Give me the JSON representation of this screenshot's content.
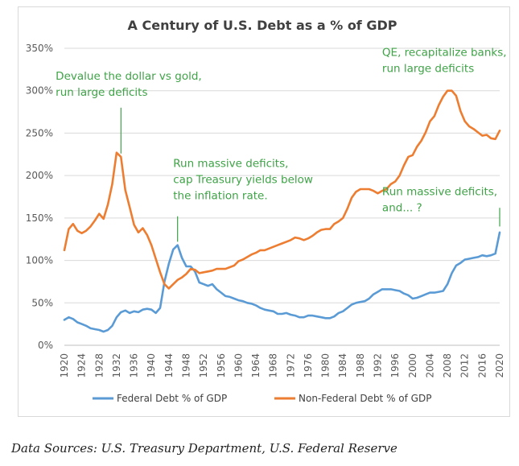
{
  "chart_data": {
    "type": "line",
    "title": "A Century of U.S. Debt as a % of GDP",
    "xlabel": "",
    "ylabel": "",
    "xlim": [
      1920,
      2020
    ],
    "ylim": [
      0,
      350
    ],
    "y_ticks": [
      0,
      50,
      100,
      150,
      200,
      250,
      300,
      350
    ],
    "y_tick_labels": [
      "0%",
      "50%",
      "100%",
      "150%",
      "200%",
      "250%",
      "300%",
      "350%"
    ],
    "x_ticks": [
      1920,
      1924,
      1928,
      1932,
      1936,
      1940,
      1944,
      1948,
      1952,
      1956,
      1960,
      1964,
      1968,
      1972,
      1976,
      1980,
      1984,
      1988,
      1992,
      1996,
      2000,
      2004,
      2008,
      2012,
      2016,
      2020
    ],
    "x_tick_labels": [
      "1920",
      "1924",
      "1928",
      "1932",
      "1936",
      "1940",
      "1944",
      "1948",
      "1952",
      "1956",
      "1960",
      "1964",
      "1968",
      "1972",
      "1976",
      "1980",
      "1984",
      "1988",
      "1992",
      "1996",
      "2000",
      "2004",
      "2008",
      "2012",
      "2016",
      "2020"
    ],
    "grid": "horizontal",
    "legend_position": "bottom",
    "series": [
      {
        "name": "Federal Debt % of GDP",
        "color": "#5b9bd5",
        "points": [
          [
            1920,
            30
          ],
          [
            1921,
            33
          ],
          [
            1922,
            31
          ],
          [
            1923,
            27
          ],
          [
            1924,
            25
          ],
          [
            1925,
            23
          ],
          [
            1926,
            20
          ],
          [
            1927,
            19
          ],
          [
            1928,
            18
          ],
          [
            1929,
            16
          ],
          [
            1930,
            18
          ],
          [
            1931,
            23
          ],
          [
            1932,
            33
          ],
          [
            1933,
            39
          ],
          [
            1934,
            41
          ],
          [
            1935,
            38
          ],
          [
            1936,
            40
          ],
          [
            1937,
            39
          ],
          [
            1938,
            42
          ],
          [
            1939,
            43
          ],
          [
            1940,
            42
          ],
          [
            1941,
            38
          ],
          [
            1942,
            44
          ],
          [
            1943,
            75
          ],
          [
            1944,
            96
          ],
          [
            1945,
            113
          ],
          [
            1946,
            118
          ],
          [
            1947,
            103
          ],
          [
            1948,
            93
          ],
          [
            1949,
            93
          ],
          [
            1950,
            87
          ],
          [
            1951,
            74
          ],
          [
            1952,
            72
          ],
          [
            1953,
            70
          ],
          [
            1954,
            72
          ],
          [
            1955,
            66
          ],
          [
            1956,
            62
          ],
          [
            1957,
            58
          ],
          [
            1958,
            57
          ],
          [
            1959,
            55
          ],
          [
            1960,
            53
          ],
          [
            1961,
            52
          ],
          [
            1962,
            50
          ],
          [
            1963,
            49
          ],
          [
            1964,
            47
          ],
          [
            1965,
            44
          ],
          [
            1966,
            42
          ],
          [
            1967,
            41
          ],
          [
            1968,
            40
          ],
          [
            1969,
            37
          ],
          [
            1970,
            37
          ],
          [
            1971,
            38
          ],
          [
            1972,
            36
          ],
          [
            1973,
            35
          ],
          [
            1974,
            33
          ],
          [
            1975,
            33
          ],
          [
            1976,
            35
          ],
          [
            1977,
            35
          ],
          [
            1978,
            34
          ],
          [
            1979,
            33
          ],
          [
            1980,
            32
          ],
          [
            1981,
            32
          ],
          [
            1982,
            34
          ],
          [
            1983,
            38
          ],
          [
            1984,
            40
          ],
          [
            1985,
            44
          ],
          [
            1986,
            48
          ],
          [
            1987,
            50
          ],
          [
            1988,
            51
          ],
          [
            1989,
            52
          ],
          [
            1990,
            55
          ],
          [
            1991,
            60
          ],
          [
            1992,
            63
          ],
          [
            1993,
            66
          ],
          [
            1994,
            66
          ],
          [
            1995,
            66
          ],
          [
            1996,
            65
          ],
          [
            1997,
            64
          ],
          [
            1998,
            61
          ],
          [
            1999,
            59
          ],
          [
            2000,
            55
          ],
          [
            2001,
            56
          ],
          [
            2002,
            58
          ],
          [
            2003,
            60
          ],
          [
            2004,
            62
          ],
          [
            2005,
            62
          ],
          [
            2006,
            63
          ],
          [
            2007,
            64
          ],
          [
            2008,
            72
          ],
          [
            2009,
            85
          ],
          [
            2010,
            94
          ],
          [
            2011,
            97
          ],
          [
            2012,
            101
          ],
          [
            2013,
            102
          ],
          [
            2014,
            103
          ],
          [
            2015,
            104
          ],
          [
            2016,
            106
          ],
          [
            2017,
            105
          ],
          [
            2018,
            106
          ],
          [
            2019,
            108
          ],
          [
            2020,
            133
          ]
        ]
      },
      {
        "name": "Non-Federal Debt % of GDP",
        "color": "#ed7d31",
        "points": [
          [
            1920,
            112
          ],
          [
            1921,
            137
          ],
          [
            1922,
            143
          ],
          [
            1923,
            135
          ],
          [
            1924,
            132
          ],
          [
            1925,
            135
          ],
          [
            1926,
            140
          ],
          [
            1927,
            147
          ],
          [
            1928,
            155
          ],
          [
            1929,
            149
          ],
          [
            1930,
            166
          ],
          [
            1931,
            190
          ],
          [
            1932,
            227
          ],
          [
            1933,
            222
          ],
          [
            1934,
            183
          ],
          [
            1935,
            163
          ],
          [
            1936,
            142
          ],
          [
            1937,
            133
          ],
          [
            1938,
            138
          ],
          [
            1939,
            130
          ],
          [
            1940,
            118
          ],
          [
            1941,
            102
          ],
          [
            1942,
            86
          ],
          [
            1943,
            72
          ],
          [
            1944,
            67
          ],
          [
            1945,
            72
          ],
          [
            1946,
            77
          ],
          [
            1947,
            80
          ],
          [
            1948,
            84
          ],
          [
            1949,
            90
          ],
          [
            1950,
            89
          ],
          [
            1951,
            85
          ],
          [
            1952,
            86
          ],
          [
            1953,
            87
          ],
          [
            1954,
            88
          ],
          [
            1955,
            90
          ],
          [
            1956,
            90
          ],
          [
            1957,
            90
          ],
          [
            1958,
            92
          ],
          [
            1959,
            94
          ],
          [
            1960,
            99
          ],
          [
            1961,
            101
          ],
          [
            1962,
            104
          ],
          [
            1963,
            107
          ],
          [
            1964,
            109
          ],
          [
            1965,
            112
          ],
          [
            1966,
            112
          ],
          [
            1967,
            114
          ],
          [
            1968,
            116
          ],
          [
            1969,
            118
          ],
          [
            1970,
            120
          ],
          [
            1971,
            122
          ],
          [
            1972,
            124
          ],
          [
            1973,
            127
          ],
          [
            1974,
            126
          ],
          [
            1975,
            124
          ],
          [
            1976,
            126
          ],
          [
            1977,
            129
          ],
          [
            1978,
            133
          ],
          [
            1979,
            136
          ],
          [
            1980,
            137
          ],
          [
            1981,
            137
          ],
          [
            1982,
            143
          ],
          [
            1983,
            146
          ],
          [
            1984,
            150
          ],
          [
            1985,
            161
          ],
          [
            1986,
            174
          ],
          [
            1987,
            181
          ],
          [
            1988,
            184
          ],
          [
            1989,
            184
          ],
          [
            1990,
            184
          ],
          [
            1991,
            182
          ],
          [
            1992,
            179
          ],
          [
            1993,
            182
          ],
          [
            1994,
            184
          ],
          [
            1995,
            190
          ],
          [
            1996,
            193
          ],
          [
            1997,
            200
          ],
          [
            1998,
            212
          ],
          [
            1999,
            222
          ],
          [
            2000,
            224
          ],
          [
            2001,
            234
          ],
          [
            2002,
            241
          ],
          [
            2003,
            251
          ],
          [
            2004,
            264
          ],
          [
            2005,
            270
          ],
          [
            2006,
            283
          ],
          [
            2007,
            293
          ],
          [
            2008,
            300
          ],
          [
            2009,
            300
          ],
          [
            2010,
            294
          ],
          [
            2011,
            276
          ],
          [
            2012,
            264
          ],
          [
            2013,
            258
          ],
          [
            2014,
            255
          ],
          [
            2015,
            251
          ],
          [
            2016,
            247
          ],
          [
            2017,
            248
          ],
          [
            2018,
            244
          ],
          [
            2019,
            243
          ],
          [
            2020,
            253
          ]
        ]
      }
    ],
    "annotations": [
      {
        "lines": [
          "Devalue the dollar vs gold,",
          "run large deficits"
        ],
        "x": 1918,
        "y": 313,
        "leader": [
          1933,
          280,
          1933,
          226
        ]
      },
      {
        "lines": [
          "Run massive deficits,",
          "cap Treasury yields below",
          "the inflation rate."
        ],
        "x": 1945,
        "y": 210,
        "leader": [
          1946,
          152,
          1946,
          122
        ]
      },
      {
        "lines": [
          "QE, recapitalize banks,",
          "run large deficits"
        ],
        "x": 1993,
        "y": 341,
        "leader": null
      },
      {
        "lines": [
          "Run massive deficits,",
          "and... ?"
        ],
        "x": 1993,
        "y": 177,
        "leader": [
          2020,
          162,
          2020,
          140
        ]
      }
    ],
    "annotation_color": "#3fa347"
  },
  "source_note": "Data Sources: U.S. Treasury Department, U.S. Federal Reserve"
}
